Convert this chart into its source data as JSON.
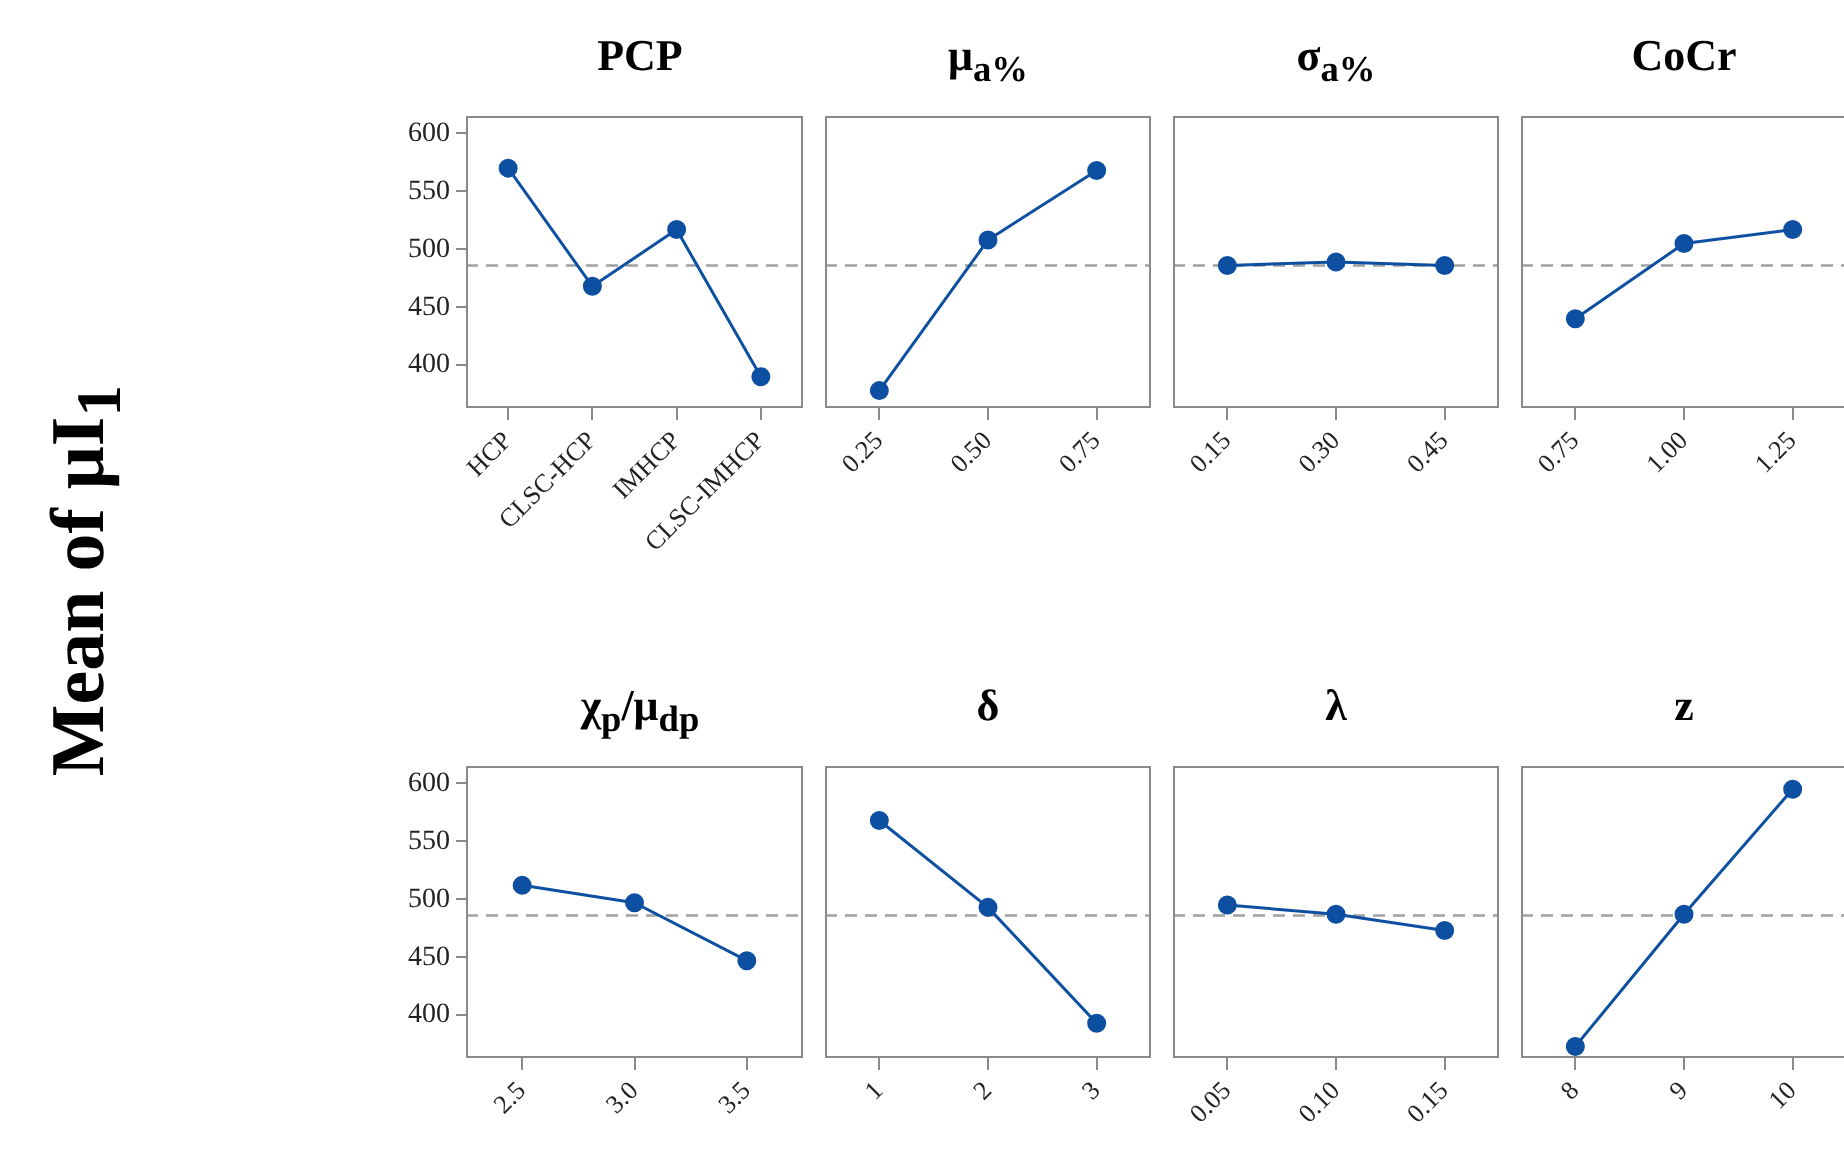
{
  "chart_data": [
    {
      "type": "line",
      "title": "PCP",
      "ylabel": "Mean of μI$_{1}$",
      "categories": [
        "HCP",
        "CLSC-HCP",
        "IMHCP",
        "CLSC-IMHCP"
      ],
      "series": [
        {
          "color": "#0d4fa0",
          "values": [
            570,
            468,
            517,
            390
          ]
        }
      ],
      "ylim": [
        363,
        615
      ],
      "yticks": [
        400,
        450,
        500,
        550,
        600
      ],
      "ref_lines": [
        {
          "axis": "y",
          "value": 486,
          "color": "#a0a0a0",
          "line_style": "dashed"
        }
      ],
      "grid": false,
      "legend": false,
      "marker": "circle",
      "line_style": "solid"
    },
    {
      "type": "line",
      "title": "μ$_{a%}$",
      "categories": [
        "0.25",
        "0.50",
        "0.75"
      ],
      "series": [
        {
          "color": "#0d4fa0",
          "values": [
            378,
            508,
            568
          ]
        }
      ],
      "ylim": [
        363,
        615
      ],
      "yticks": [
        400,
        450,
        500,
        550,
        600
      ],
      "ref_lines": [
        {
          "axis": "y",
          "value": 486,
          "color": "#a0a0a0",
          "line_style": "dashed"
        }
      ],
      "grid": false,
      "legend": false,
      "marker": "circle",
      "line_style": "solid",
      "tick_labels": "x"
    },
    {
      "type": "line",
      "title": "σ$_{a%}$",
      "categories": [
        "0.15",
        "0.30",
        "0.45"
      ],
      "series": [
        {
          "color": "#0d4fa0",
          "values": [
            486,
            489,
            486
          ]
        }
      ],
      "ylim": [
        363,
        615
      ],
      "yticks": [
        400,
        450,
        500,
        550,
        600
      ],
      "ref_lines": [
        {
          "axis": "y",
          "value": 486,
          "color": "#a0a0a0",
          "line_style": "dashed"
        }
      ],
      "grid": false,
      "legend": false,
      "marker": "circle",
      "line_style": "solid",
      "tick_labels": "x"
    },
    {
      "type": "line",
      "title": "CoCr",
      "categories": [
        "0.75",
        "1.00",
        "1.25"
      ],
      "series": [
        {
          "color": "#0d4fa0",
          "values": [
            440,
            505,
            517
          ]
        }
      ],
      "ylim": [
        363,
        615
      ],
      "yticks": [
        400,
        450,
        500,
        550,
        600
      ],
      "ref_lines": [
        {
          "axis": "y",
          "value": 486,
          "color": "#a0a0a0",
          "line_style": "dashed"
        }
      ],
      "grid": false,
      "legend": false,
      "marker": "circle",
      "line_style": "solid",
      "tick_labels": "x"
    },
    {
      "type": "line",
      "title": "χ$_{p}$/μ$_{dp}$",
      "categories": [
        "2.5",
        "3.0",
        "3.5"
      ],
      "series": [
        {
          "color": "#0d4fa0",
          "values": [
            512,
            497,
            447
          ]
        }
      ],
      "ylim": [
        363,
        615
      ],
      "yticks": [
        400,
        450,
        500,
        550,
        600
      ],
      "ref_lines": [
        {
          "axis": "y",
          "value": 486,
          "color": "#a0a0a0",
          "line_style": "dashed"
        }
      ],
      "grid": false,
      "legend": false,
      "marker": "circle",
      "line_style": "solid"
    },
    {
      "type": "line",
      "title": "δ",
      "categories": [
        "1",
        "2",
        "3"
      ],
      "series": [
        {
          "color": "#0d4fa0",
          "values": [
            568,
            493,
            393
          ]
        }
      ],
      "ylim": [
        363,
        615
      ],
      "yticks": [
        400,
        450,
        500,
        550,
        600
      ],
      "ref_lines": [
        {
          "axis": "y",
          "value": 486,
          "color": "#a0a0a0",
          "line_style": "dashed"
        }
      ],
      "grid": false,
      "legend": false,
      "marker": "circle",
      "line_style": "solid",
      "tick_labels": "x"
    },
    {
      "type": "line",
      "title": "λ",
      "categories": [
        "0.05",
        "0.10",
        "0.15"
      ],
      "series": [
        {
          "color": "#0d4fa0",
          "values": [
            495,
            487,
            473
          ]
        }
      ],
      "ylim": [
        363,
        615
      ],
      "yticks": [
        400,
        450,
        500,
        550,
        600
      ],
      "ref_lines": [
        {
          "axis": "y",
          "value": 486,
          "color": "#a0a0a0",
          "line_style": "dashed"
        }
      ],
      "grid": false,
      "legend": false,
      "marker": "circle",
      "line_style": "solid",
      "tick_labels": "x"
    },
    {
      "type": "line",
      "title": "z",
      "categories": [
        "8",
        "9",
        "10"
      ],
      "series": [
        {
          "color": "#0d4fa0",
          "values": [
            373,
            487,
            595
          ]
        }
      ],
      "ylim": [
        363,
        615
      ],
      "yticks": [
        400,
        450,
        500,
        550,
        600
      ],
      "ref_lines": [
        {
          "axis": "y",
          "value": 486,
          "color": "#a0a0a0",
          "line_style": "dashed"
        }
      ],
      "grid": false,
      "legend": false,
      "marker": "circle",
      "line_style": "solid",
      "tick_labels": "x"
    }
  ]
}
